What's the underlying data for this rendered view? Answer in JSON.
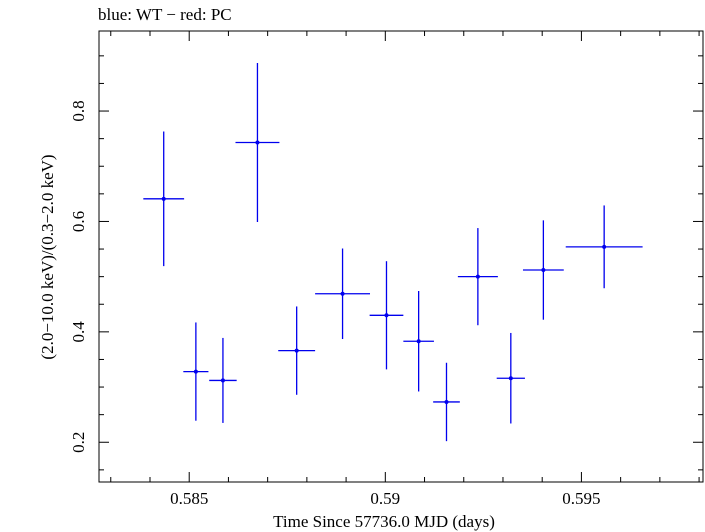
{
  "chart_data": {
    "type": "scatter",
    "title": "blue: WT − red: PC",
    "xlabel": "Time Since 57736.0 MJD (days)",
    "ylabel": "(2.0−10.0 keV)/(0.3−2.0 keV)",
    "xlim": [
      0.5827,
      0.5981
    ],
    "ylim": [
      0.128,
      0.945
    ],
    "x_ticks": [
      0.585,
      0.59,
      0.595
    ],
    "x_tick_labels": [
      "0.585",
      "0.59",
      "0.595"
    ],
    "y_ticks": [
      0.2,
      0.4,
      0.6,
      0.8
    ],
    "y_tick_labels": [
      "0.2",
      "0.4",
      "0.6",
      "0.8"
    ],
    "grid": false,
    "legend": "none",
    "series": [
      {
        "color": "#0000ee",
        "points": [
          {
            "x": 0.58435,
            "xerr": 0.00052,
            "y": 0.641,
            "yerr": 0.122
          },
          {
            "x": 0.58517,
            "xerr": 0.00032,
            "y": 0.328,
            "yerr": 0.089
          },
          {
            "x": 0.58586,
            "xerr": 0.00035,
            "y": 0.312,
            "yerr": 0.077
          },
          {
            "x": 0.58674,
            "xerr": 0.00056,
            "y": 0.743,
            "yerr": 0.144
          },
          {
            "x": 0.58774,
            "xerr": 0.00047,
            "y": 0.366,
            "yerr": 0.08
          },
          {
            "x": 0.58891,
            "xerr": 0.0007,
            "y": 0.469,
            "yerr": 0.082
          },
          {
            "x": 0.59003,
            "xerr": 0.00043,
            "y": 0.43,
            "yerr": 0.098
          },
          {
            "x": 0.59085,
            "xerr": 0.00039,
            "y": 0.383,
            "yerr": 0.091
          },
          {
            "x": 0.59156,
            "xerr": 0.00034,
            "y": 0.273,
            "yerr": 0.071
          },
          {
            "x": 0.59236,
            "xerr": 0.00051,
            "y": 0.5,
            "yerr": 0.088
          },
          {
            "x": 0.5932,
            "xerr": 0.00036,
            "y": 0.316,
            "yerr": 0.082
          },
          {
            "x": 0.59403,
            "xerr": 0.00052,
            "y": 0.512,
            "yerr": 0.09
          },
          {
            "x": 0.59558,
            "xerr": 0.00098,
            "y": 0.554,
            "yerr": 0.075
          }
        ]
      }
    ]
  }
}
